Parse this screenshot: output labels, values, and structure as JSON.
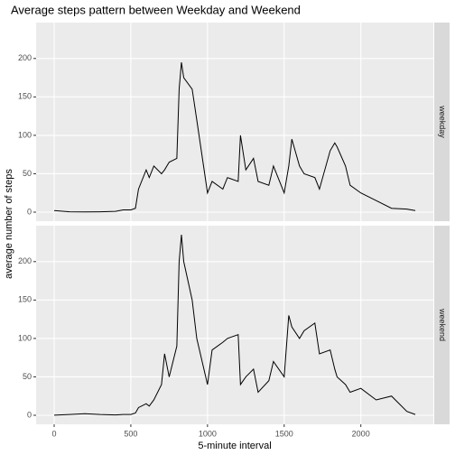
{
  "chart_data": {
    "type": "line",
    "title": "Average steps pattern between Weekday and Weekend",
    "x_label": "5-minute interval",
    "y_label": "average number of steps",
    "x": [
      0,
      100,
      200,
      300,
      400,
      450,
      500,
      530,
      550,
      600,
      620,
      650,
      700,
      720,
      750,
      800,
      815,
      830,
      845,
      900,
      930,
      1000,
      1030,
      1100,
      1130,
      1200,
      1215,
      1250,
      1300,
      1330,
      1400,
      1430,
      1500,
      1530,
      1550,
      1600,
      1630,
      1700,
      1730,
      1800,
      1830,
      1845,
      1900,
      1930,
      2000,
      2100,
      2200,
      2300,
      2355
    ],
    "series": [
      {
        "name": "weekday",
        "color": "#000000",
        "values": [
          2,
          0.5,
          0.3,
          0.5,
          1,
          3,
          3,
          5,
          30,
          55,
          45,
          60,
          50,
          55,
          65,
          70,
          160,
          195,
          175,
          160,
          120,
          25,
          40,
          30,
          45,
          40,
          100,
          55,
          70,
          40,
          35,
          60,
          25,
          60,
          95,
          60,
          50,
          45,
          30,
          80,
          90,
          85,
          60,
          35,
          25,
          15,
          5,
          4,
          2
        ]
      },
      {
        "name": "weekend",
        "color": "#000000",
        "values": [
          0.2,
          1,
          2,
          1,
          0.5,
          1,
          1,
          3,
          10,
          15,
          12,
          20,
          40,
          80,
          50,
          90,
          200,
          235,
          200,
          150,
          100,
          40,
          85,
          95,
          100,
          105,
          40,
          50,
          60,
          30,
          45,
          70,
          50,
          130,
          115,
          100,
          110,
          120,
          80,
          85,
          60,
          50,
          40,
          30,
          35,
          20,
          25,
          5,
          1
        ]
      }
    ],
    "xlim": [
      -117.75,
      2472.75
    ],
    "xticks": [
      0,
      500,
      1000,
      1500,
      2000
    ],
    "ylim": [
      -11.75,
      246.75
    ],
    "yticks": [
      0,
      50,
      100,
      150,
      200
    ],
    "grid": true
  }
}
